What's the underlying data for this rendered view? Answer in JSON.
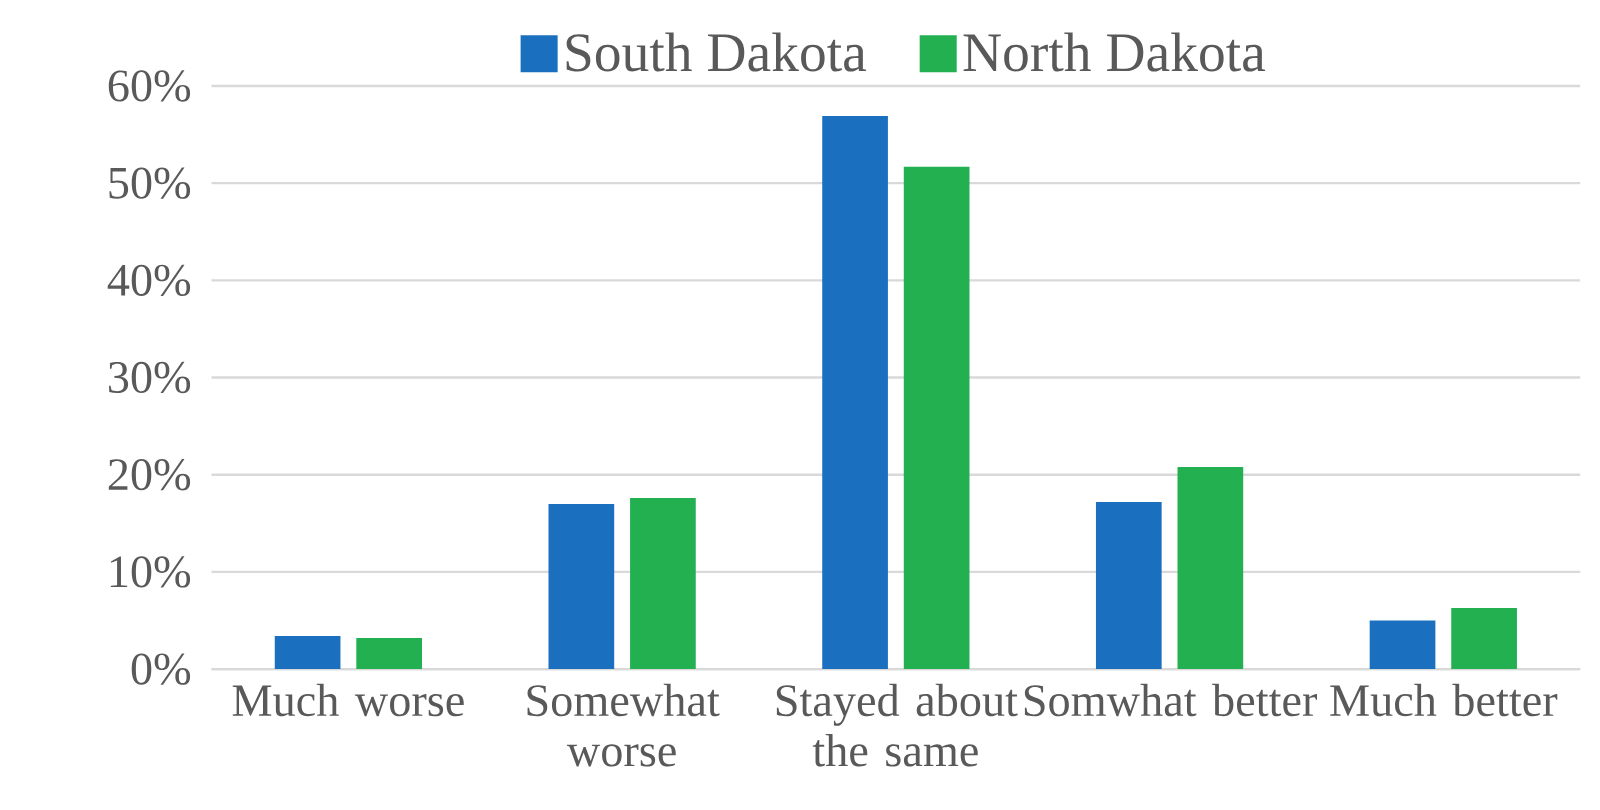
{
  "chart_data": {
    "type": "bar",
    "categories": [
      "Much worse",
      "Somewhat worse",
      "Stayed about the same",
      "Somwhat better",
      "Much better"
    ],
    "series": [
      {
        "name": "South Dakota",
        "color": "#1a70be",
        "values": [
          3.4,
          17.0,
          56.9,
          17.2,
          5.0
        ]
      },
      {
        "name": "North Dakota",
        "color": "#22b051",
        "values": [
          3.2,
          17.6,
          51.7,
          20.8,
          6.3
        ]
      }
    ],
    "ylim": [
      0,
      60
    ],
    "yticks": [
      {
        "value": 0,
        "label": "0%"
      },
      {
        "value": 10,
        "label": "10%"
      },
      {
        "value": 20,
        "label": "20%"
      },
      {
        "value": 30,
        "label": "30%"
      },
      {
        "value": 40,
        "label": "40%"
      },
      {
        "value": 50,
        "label": "50%"
      },
      {
        "value": 60,
        "label": "60%"
      }
    ],
    "grid": "y",
    "legend": "top"
  }
}
